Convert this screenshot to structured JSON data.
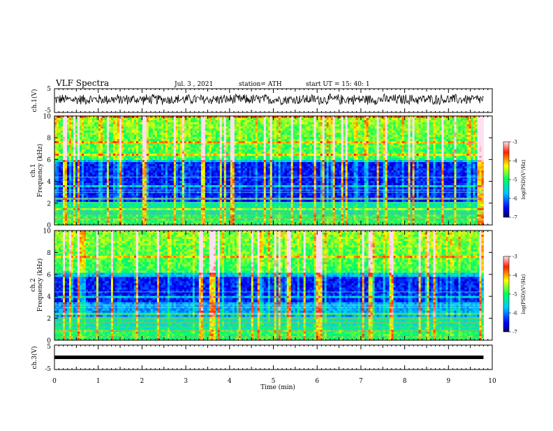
{
  "header": {
    "title": "VLF Spectra",
    "date": "Jul. 3 , 2021",
    "station": "station= ATH",
    "start": "start UT = 15: 40: 1"
  },
  "chart_data": {
    "type": "heatmap",
    "xlabel": "Time (min)",
    "x_ticks": [
      "0",
      "1",
      "2",
      "3",
      "4",
      "5",
      "6",
      "7",
      "8",
      "9",
      "10"
    ],
    "xlim": [
      0,
      10
    ],
    "panels": [
      {
        "name": "ch.1(V)",
        "type": "line",
        "ylabel": "ch.1(V)",
        "ylim": [
          -5,
          5
        ],
        "y_ticks": [
          "5",
          "-5"
        ],
        "signal_range": [
          -2,
          3
        ],
        "signal_end_min": 9.8
      },
      {
        "name": "ch.1 spectrogram",
        "type": "heatmap",
        "ylabel_top": "ch.1",
        "ylabel": "Frequency (kHz)",
        "ylim": [
          0,
          10
        ],
        "y_ticks": [
          "0",
          "2",
          "4",
          "6",
          "8",
          "10"
        ],
        "data_end_min": 9.8,
        "dark_band_khz": [
          2.2,
          5.9
        ],
        "colorbar": {
          "label": "log(PSD)(V²/Hz)",
          "ticks": [
            "-3",
            "-4",
            "-5",
            "-6",
            "-7"
          ],
          "range": [
            -7,
            -3
          ]
        }
      },
      {
        "name": "ch.2 spectrogram",
        "type": "heatmap",
        "ylabel_top": "ch.2",
        "ylabel": "Frequency (kHz)",
        "ylim": [
          0,
          10
        ],
        "y_ticks": [
          "0",
          "2",
          "4",
          "6",
          "8",
          "10"
        ],
        "data_end_min": 9.8,
        "dark_band_khz": [
          3.5,
          6.5
        ],
        "colorbar": {
          "label": "log(PSD)(V²/Hz)",
          "ticks": [
            "-3",
            "-4",
            "-5",
            "-6",
            "-7"
          ],
          "range": [
            -7,
            -3
          ]
        }
      },
      {
        "name": "ch.3(V)",
        "type": "line",
        "ylabel": "ch.3(V)",
        "ylim": [
          -5,
          5
        ],
        "y_ticks": [
          "5",
          "-5"
        ],
        "signal_value": 0,
        "signal_end_min": 9.8
      }
    ]
  }
}
